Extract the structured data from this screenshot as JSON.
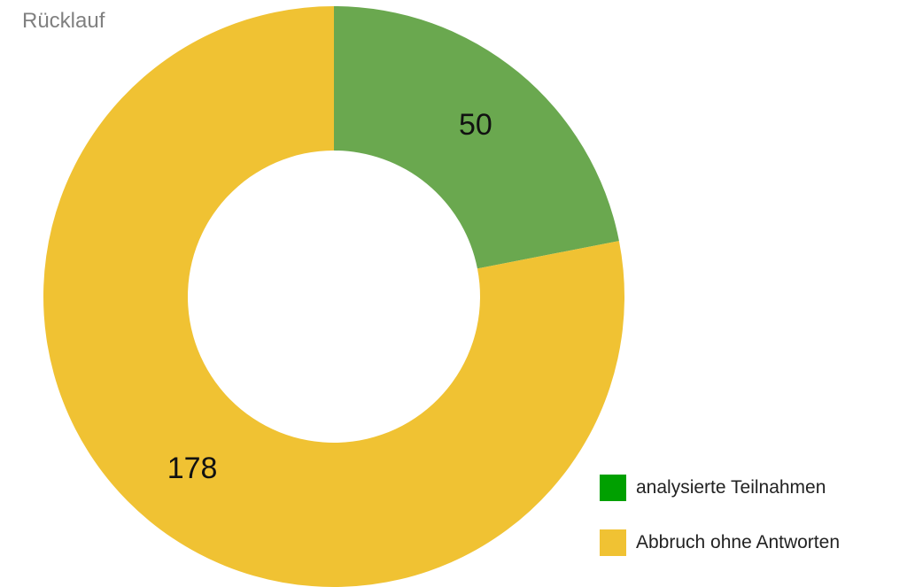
{
  "chart_data": {
    "type": "pie",
    "title": "Rücklauf",
    "donut": true,
    "start_angle_deg": 0,
    "direction": "clockwise",
    "legend_placement": "bottom-right",
    "series": [
      {
        "name": "analysierte Teilnahmen",
        "value": 50,
        "slice_color": "#6aa84f",
        "legend_color": "#00a000"
      },
      {
        "name": "Abbruch ohne Antworten",
        "value": 178,
        "slice_color": "#f0c233",
        "legend_color": "#f0c233"
      }
    ]
  }
}
